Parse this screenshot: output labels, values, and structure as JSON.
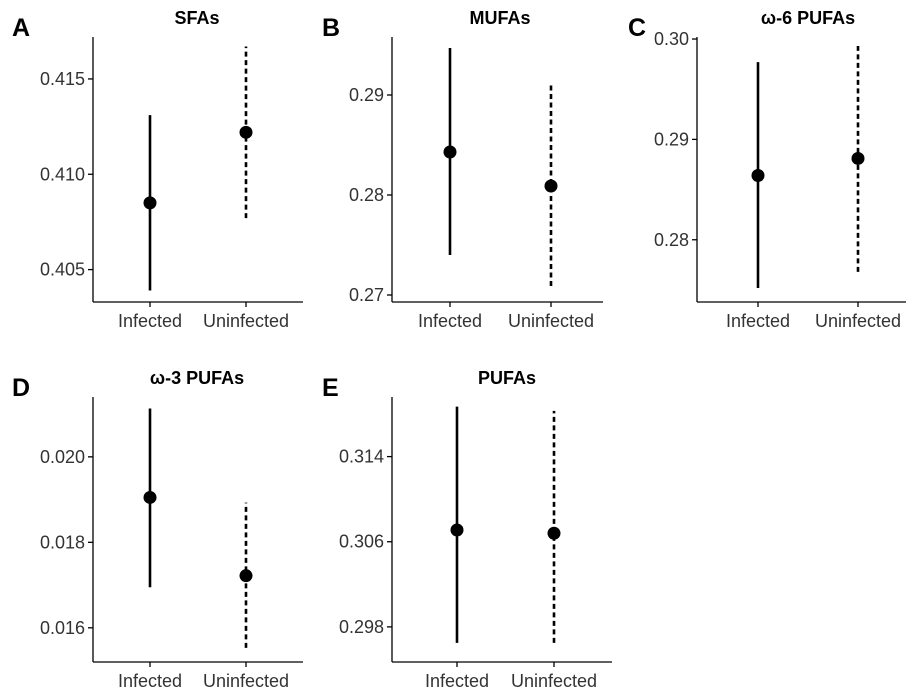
{
  "chart_data": [
    {
      "type": "scatter",
      "panel_label": "A",
      "title": "SFAs",
      "categories": [
        "Infected",
        "Uninfected"
      ],
      "yticks": [
        0.405,
        0.41,
        0.415
      ],
      "ytick_labels": [
        "0.405",
        "0.410",
        "0.415"
      ],
      "ylim": [
        0.4033,
        0.4172
      ],
      "series": [
        {
          "category": "Infected",
          "mean": 0.4085,
          "lower": 0.4039,
          "upper": 0.4131,
          "line_style": "solid"
        },
        {
          "category": "Uninfected",
          "mean": 0.4122,
          "lower": 0.4077,
          "upper": 0.4167,
          "line_style": "dashed"
        }
      ]
    },
    {
      "type": "scatter",
      "panel_label": "B",
      "title": "MUFAs",
      "categories": [
        "Infected",
        "Uninfected"
      ],
      "yticks": [
        0.27,
        0.28,
        0.29
      ],
      "ytick_labels": [
        "0.27",
        "0.28",
        "0.29"
      ],
      "ylim": [
        0.2693,
        0.2958
      ],
      "series": [
        {
          "category": "Infected",
          "mean": 0.2843,
          "lower": 0.274,
          "upper": 0.2947,
          "line_style": "solid"
        },
        {
          "category": "Uninfected",
          "mean": 0.2809,
          "lower": 0.2709,
          "upper": 0.2911,
          "line_style": "dashed"
        }
      ]
    },
    {
      "type": "scatter",
      "panel_label": "C",
      "title": "ω-6 PUFAs",
      "categories": [
        "Infected",
        "Uninfected"
      ],
      "yticks": [
        0.28,
        0.29,
        0.3
      ],
      "ytick_labels": [
        "0.28",
        "0.29",
        "0.30"
      ],
      "ylim": [
        0.2738,
        0.3002
      ],
      "series": [
        {
          "category": "Infected",
          "mean": 0.2864,
          "lower": 0.2752,
          "upper": 0.2977,
          "line_style": "solid"
        },
        {
          "category": "Uninfected",
          "mean": 0.2881,
          "lower": 0.2768,
          "upper": 0.2993,
          "line_style": "dashed"
        }
      ]
    },
    {
      "type": "scatter",
      "panel_label": "D",
      "title": "ω-3 PUFAs",
      "categories": [
        "Infected",
        "Uninfected"
      ],
      "yticks": [
        0.016,
        0.018,
        0.02
      ],
      "ytick_labels": [
        "0.016",
        "0.018",
        "0.020"
      ],
      "ylim": [
        0.0152,
        0.0214
      ],
      "series": [
        {
          "category": "Infected",
          "mean": 0.01905,
          "lower": 0.01695,
          "upper": 0.02113,
          "line_style": "solid"
        },
        {
          "category": "Uninfected",
          "mean": 0.01722,
          "lower": 0.01553,
          "upper": 0.01893,
          "line_style": "dashed"
        }
      ]
    },
    {
      "type": "scatter",
      "panel_label": "E",
      "title": "PUFAs",
      "categories": [
        "Infected",
        "Uninfected"
      ],
      "yticks": [
        0.298,
        0.306,
        0.314
      ],
      "ytick_labels": [
        "0.298",
        "0.306",
        "0.314"
      ],
      "ylim": [
        0.2947,
        0.3196
      ],
      "series": [
        {
          "category": "Infected",
          "mean": 0.3071,
          "lower": 0.2965,
          "upper": 0.3187,
          "line_style": "solid"
        },
        {
          "category": "Uninfected",
          "mean": 0.3068,
          "lower": 0.2965,
          "upper": 0.3183,
          "line_style": "dashed"
        }
      ]
    }
  ]
}
